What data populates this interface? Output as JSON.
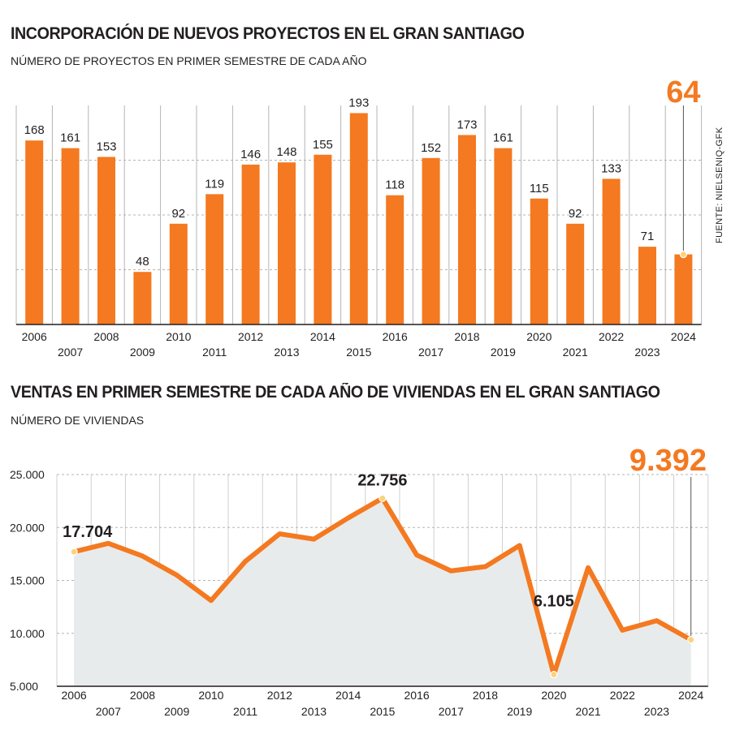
{
  "colors": {
    "bar": "#f47920",
    "line": "#f47920",
    "area": "#e8ebeb",
    "grid": "#b5b5b5",
    "text": "#231f20",
    "marker": "#ffd27a"
  },
  "source": "FUENTE: NIELSENIQ-GFK",
  "chart_data": [
    {
      "type": "bar",
      "title": "INCORPORACIÓN DE NUEVOS PROYECTOS EN EL GRAN SANTIAGO",
      "subtitle": "NÚMERO DE PROYECTOS EN PRIMER SEMESTRE DE CADA AÑO",
      "categories": [
        "2006",
        "2007",
        "2008",
        "2009",
        "2010",
        "2011",
        "2012",
        "2013",
        "2014",
        "2015",
        "2016",
        "2017",
        "2018",
        "2019",
        "2020",
        "2021",
        "2022",
        "2023",
        "2024"
      ],
      "values": [
        168,
        161,
        153,
        48,
        92,
        119,
        146,
        148,
        155,
        193,
        118,
        152,
        173,
        161,
        115,
        92,
        133,
        71,
        64
      ],
      "labels": [
        "168",
        "161",
        "153",
        "48",
        "92",
        "119",
        "146",
        "148",
        "155",
        "193",
        "118",
        "152",
        "173",
        "161",
        "115",
        "92",
        "133",
        "71",
        ""
      ],
      "highlight": {
        "label": "64",
        "category": "2024"
      },
      "ylim": [
        0,
        200
      ],
      "grid": true
    },
    {
      "type": "area",
      "title": "VENTAS EN PRIMER SEMESTRE DE CADA AÑO DE VIVIENDAS EN EL GRAN SANTIAGO",
      "subtitle": "NÚMERO DE VIVIENDAS",
      "x": [
        "2006",
        "2007",
        "2008",
        "2009",
        "2010",
        "2011",
        "2012",
        "2013",
        "2014",
        "2015",
        "2016",
        "2017",
        "2018",
        "2019",
        "2020",
        "2021",
        "2022",
        "2023",
        "2024"
      ],
      "values": [
        17704,
        18500,
        17300,
        15500,
        13100,
        16800,
        19400,
        18900,
        20900,
        22756,
        17400,
        15900,
        16300,
        18300,
        6105,
        16200,
        10300,
        11200,
        9392
      ],
      "ylim": [
        5000,
        25000
      ],
      "yticks": [
        "5.000",
        "10.000",
        "15.000",
        "20.000",
        "25.000"
      ],
      "grid": true,
      "annotations": [
        {
          "label": "17.704",
          "category": "2006"
        },
        {
          "label": "22.756",
          "category": "2015"
        },
        {
          "label": "6.105",
          "category": "2020"
        }
      ],
      "highlight": {
        "label": "9.392",
        "category": "2024"
      }
    }
  ]
}
